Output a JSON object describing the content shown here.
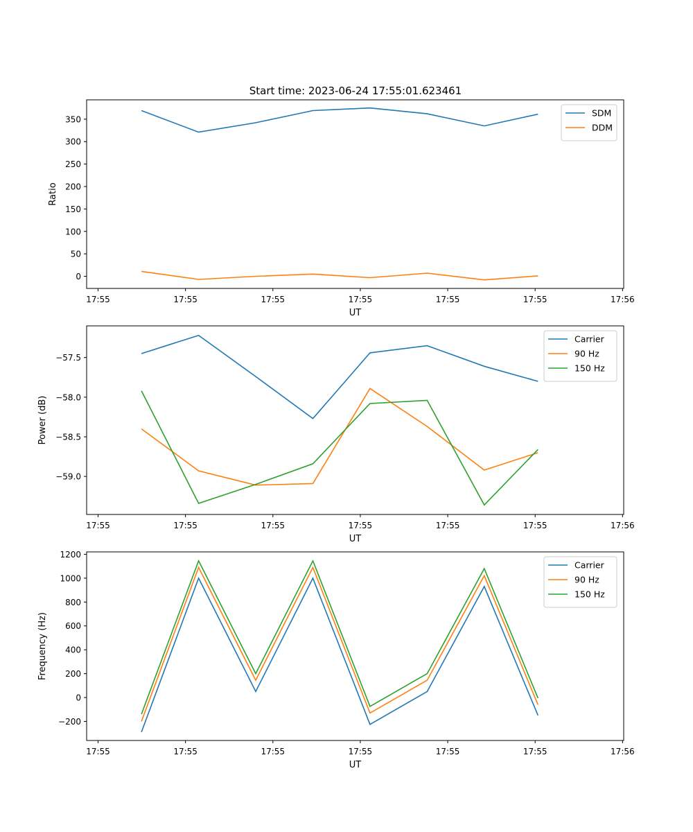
{
  "figure": {
    "title": "Start time: 2023-06-24 17:55:01.623461"
  },
  "colors": {
    "blue": "#1f77b4",
    "orange": "#ff7f0e",
    "green": "#2ca02c",
    "axes": "#000000",
    "legend_border": "#cccccc"
  },
  "chart_data": [
    {
      "type": "line",
      "title": "Start time: 2023-06-24 17:55:01.623461",
      "xlabel": "UT",
      "ylabel": "Ratio",
      "legend_position": "top-right",
      "grid": false,
      "xlim": [
        -0.1,
        4.6
      ],
      "ylim": [
        -27,
        393
      ],
      "x_ticks": [
        0,
        0.765,
        1.53,
        2.295,
        3.06,
        3.825,
        4.59
      ],
      "x_tick_labels": [
        "17:55",
        "17:55",
        "17:55",
        "17:55",
        "17:55",
        "17:55",
        "17:56"
      ],
      "y_ticks": [
        0,
        50,
        100,
        150,
        200,
        250,
        300,
        350
      ],
      "y_tick_labels": [
        "0",
        "50",
        "100",
        "150",
        "200",
        "250",
        "300",
        "350"
      ],
      "x": [
        0.38,
        0.88,
        1.38,
        1.88,
        2.38,
        2.88,
        3.38,
        3.85
      ],
      "series": [
        {
          "name": "SDM",
          "color": "#1f77b4",
          "values": [
            369,
            321,
            342,
            369,
            375,
            362,
            335,
            361
          ]
        },
        {
          "name": "DDM",
          "color": "#ff7f0e",
          "values": [
            11,
            -7,
            0,
            5,
            -3,
            7,
            -8,
            1
          ]
        }
      ]
    },
    {
      "type": "line",
      "title": "",
      "xlabel": "UT",
      "ylabel": "Power (dB)",
      "legend_position": "top-right",
      "grid": false,
      "xlim": [
        -0.1,
        4.6
      ],
      "ylim": [
        -59.48,
        -57.1
      ],
      "x_ticks": [
        0,
        0.765,
        1.53,
        2.295,
        3.06,
        3.825,
        4.59
      ],
      "x_tick_labels": [
        "17:55",
        "17:55",
        "17:55",
        "17:55",
        "17:55",
        "17:55",
        "17:56"
      ],
      "y_ticks": [
        -57.5,
        -58.0,
        -58.5,
        -59.0
      ],
      "y_tick_labels": [
        "−57.5",
        "−58.0",
        "−58.5",
        "−59.0"
      ],
      "x": [
        0.38,
        0.88,
        1.38,
        1.88,
        2.38,
        2.88,
        3.38,
        3.85
      ],
      "series": [
        {
          "name": "Carrier",
          "color": "#1f77b4",
          "values": [
            -57.45,
            -57.22,
            -57.74,
            -58.27,
            -57.44,
            -57.35,
            -57.61,
            -57.8
          ]
        },
        {
          "name": "90 Hz",
          "color": "#ff7f0e",
          "values": [
            -58.4,
            -58.93,
            -59.11,
            -59.09,
            -57.89,
            -58.37,
            -58.92,
            -58.7
          ]
        },
        {
          "name": "150 Hz",
          "color": "#2ca02c",
          "values": [
            -57.92,
            -59.34,
            -59.1,
            -58.84,
            -58.08,
            -58.04,
            -59.36,
            -58.66
          ]
        }
      ]
    },
    {
      "type": "line",
      "title": "",
      "xlabel": "UT",
      "ylabel": "Frequency (Hz)",
      "legend_position": "top-right",
      "grid": false,
      "xlim": [
        -0.1,
        4.6
      ],
      "ylim": [
        -360,
        1220
      ],
      "x_ticks": [
        0,
        0.765,
        1.53,
        2.295,
        3.06,
        3.825,
        4.59
      ],
      "x_tick_labels": [
        "17:55",
        "17:55",
        "17:55",
        "17:55",
        "17:55",
        "17:55",
        "17:56"
      ],
      "y_ticks": [
        -200,
        0,
        200,
        400,
        600,
        800,
        1000,
        1200
      ],
      "y_tick_labels": [
        "−200",
        "0",
        "200",
        "400",
        "600",
        "800",
        "1000",
        "1200"
      ],
      "x": [
        0.38,
        0.88,
        1.38,
        1.88,
        2.38,
        2.88,
        3.38,
        3.85
      ],
      "series": [
        {
          "name": "Carrier",
          "color": "#1f77b4",
          "values": [
            -290,
            1000,
            50,
            1000,
            -225,
            50,
            930,
            -150
          ]
        },
        {
          "name": "90 Hz",
          "color": "#ff7f0e",
          "values": [
            -200,
            1090,
            145,
            1090,
            -130,
            145,
            1020,
            -60
          ]
        },
        {
          "name": "150 Hz",
          "color": "#2ca02c",
          "values": [
            -140,
            1145,
            200,
            1145,
            -75,
            200,
            1080,
            -5
          ]
        }
      ]
    }
  ]
}
